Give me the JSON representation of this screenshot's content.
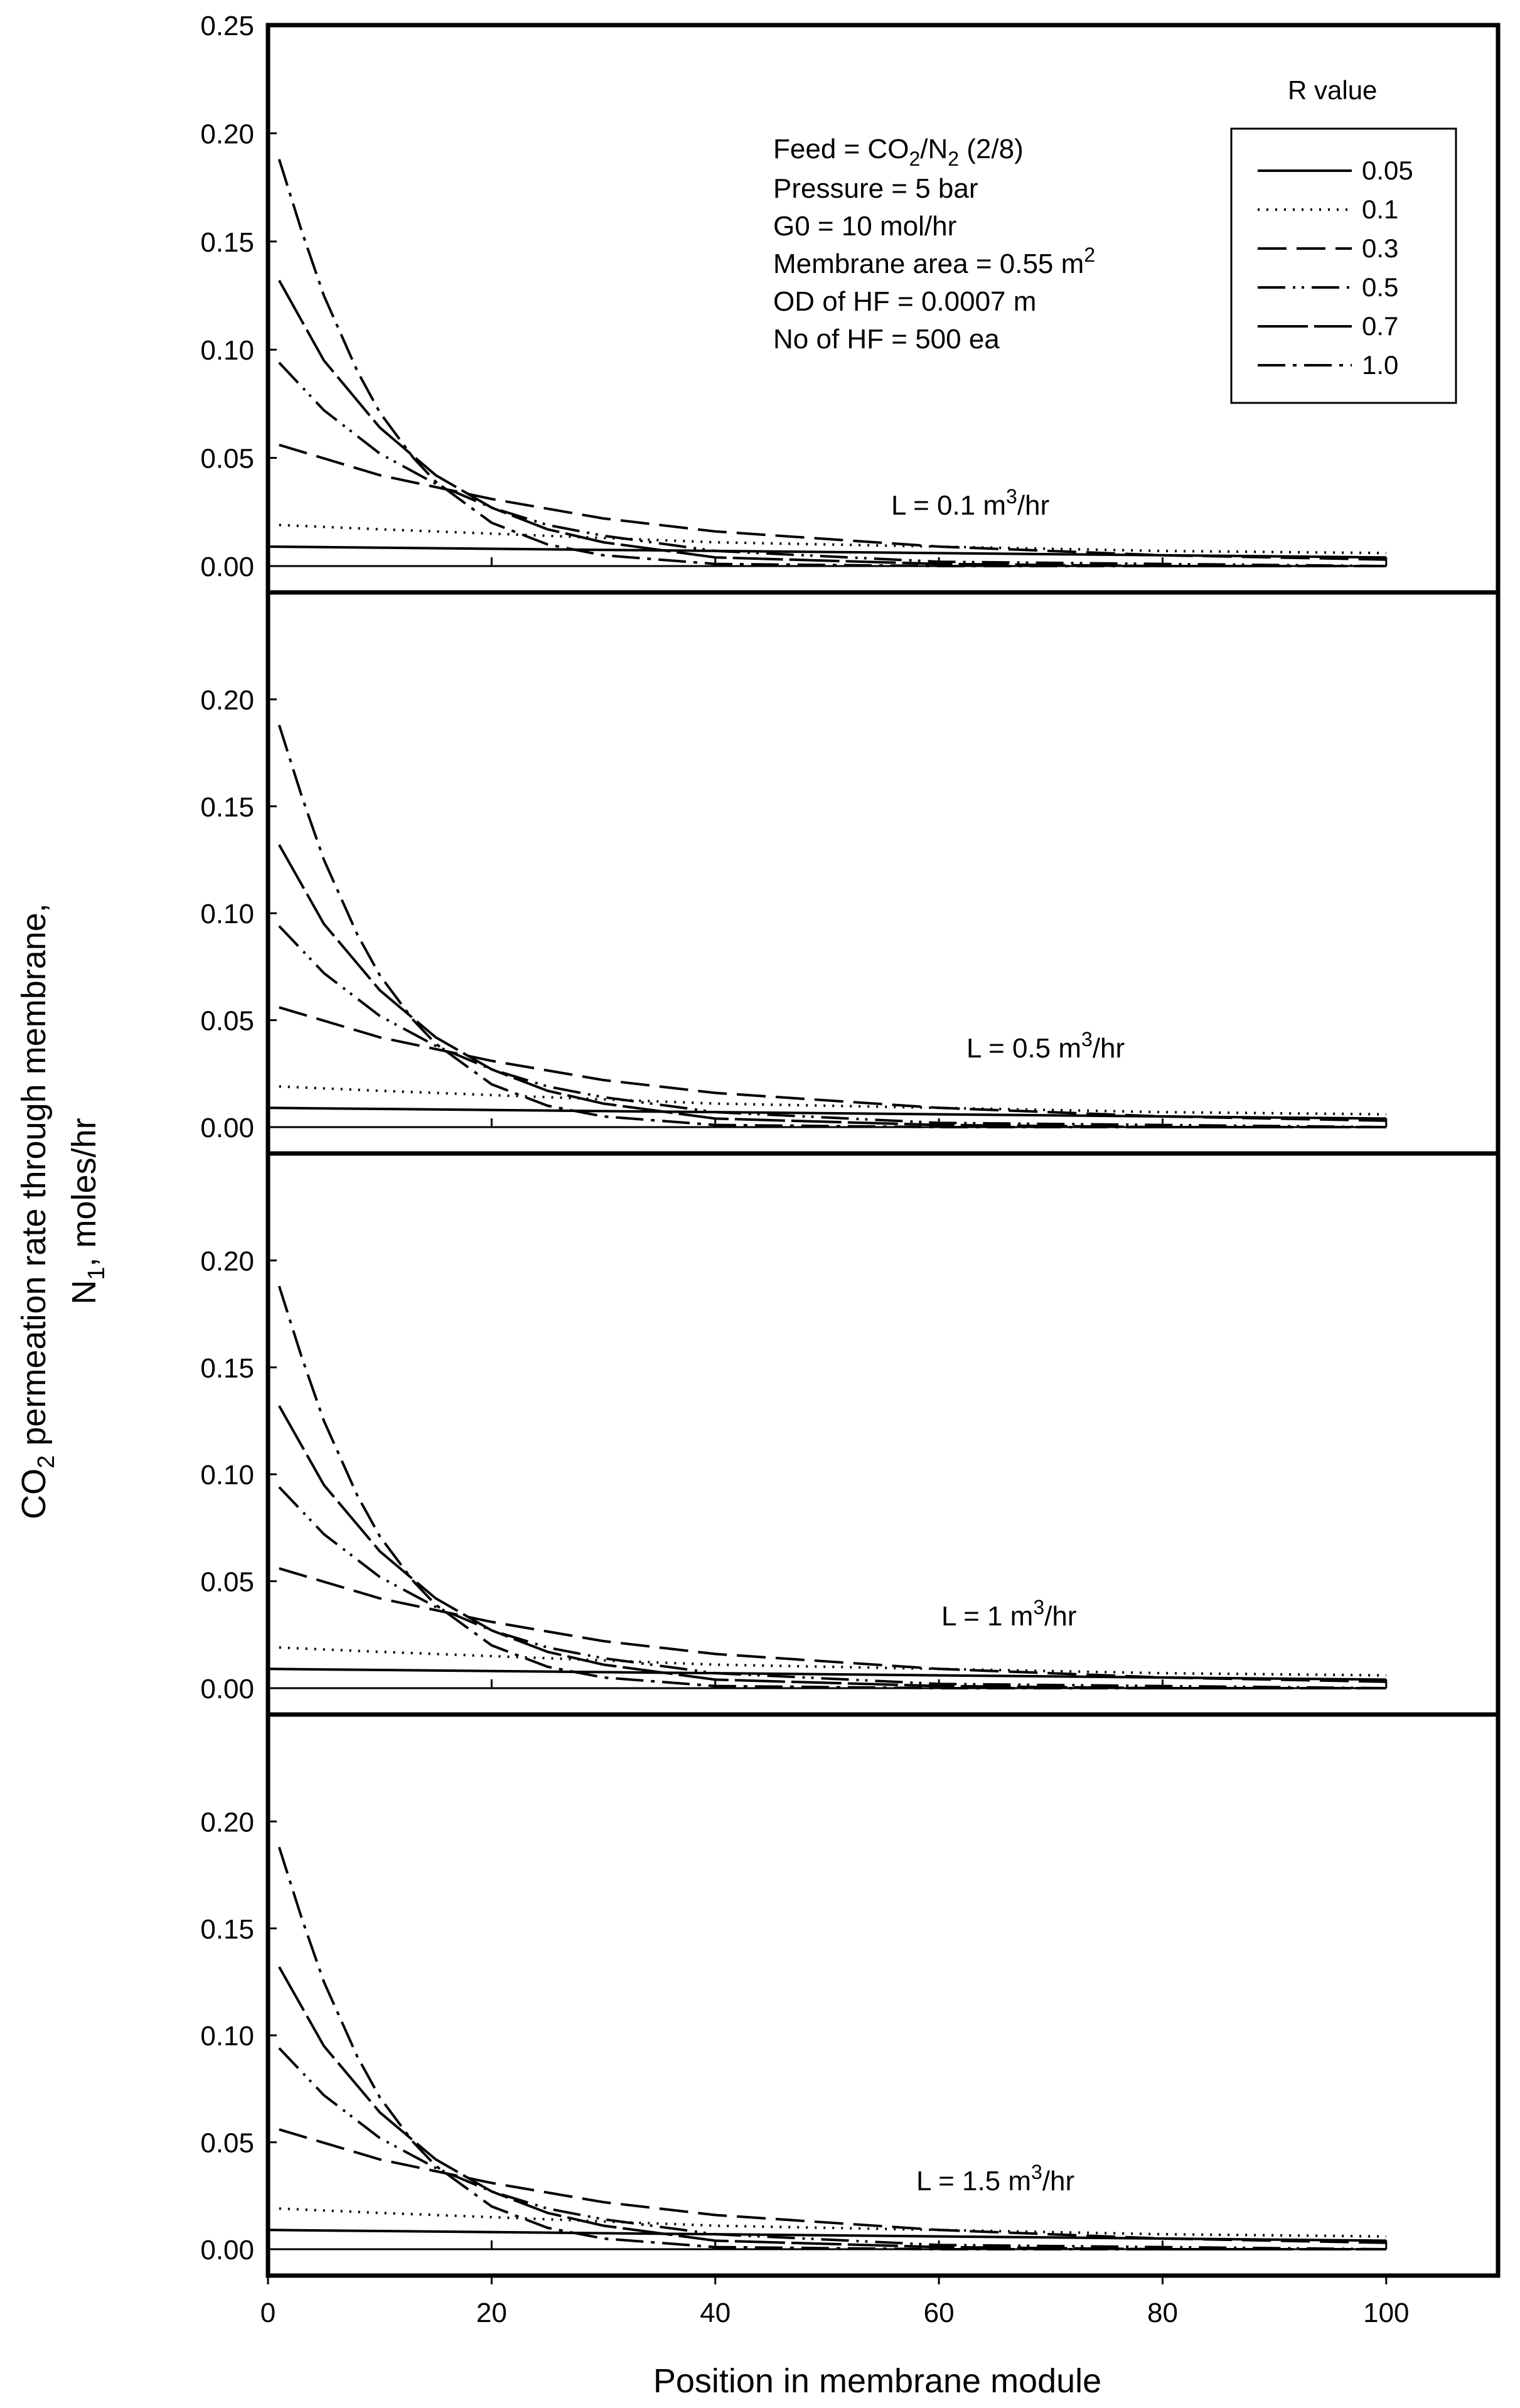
{
  "chart_data": {
    "type": "line",
    "panels": 4,
    "xlabel": "Position in membrane module",
    "ylabel_line1": "CO",
    "ylabel_line1_sub": "2",
    "ylabel_line1_rest": " permeation rate through membrane,",
    "ylabel_line2": "N",
    "ylabel_line2_sub": "1",
    "ylabel_line2_rest": ", moles/hr",
    "xlim": [
      0,
      110
    ],
    "ylim": [
      0,
      0.25
    ],
    "x_ticks": [
      0,
      20,
      40,
      60,
      80,
      100
    ],
    "x_tick_labels": [
      "0",
      "20",
      "40",
      "60",
      "80",
      "100"
    ],
    "y_ticks_top": [
      0.0,
      0.05,
      0.1,
      0.15,
      0.2,
      0.25
    ],
    "y_tick_labels_top": [
      "0.00",
      "0.05",
      "0.10",
      "0.15",
      "0.20",
      "0.25"
    ],
    "y_ticks_other": [
      0.0,
      0.05,
      0.1,
      0.15,
      0.2
    ],
    "y_tick_labels_other": [
      "0.00",
      "0.05",
      "0.10",
      "0.15",
      "0.20"
    ],
    "legend": {
      "title": "R value",
      "entries": [
        "0.05",
        "0.1",
        "0.3",
        "0.5",
        "0.7",
        "1.0"
      ],
      "location": "top-right"
    },
    "conditions": {
      "feed_prefix": "Feed = CO",
      "feed_sub1": "2",
      "feed_mid": "/N",
      "feed_sub2": "2",
      "feed_suffix": " (2/8)",
      "pressure": "Pressure = 5 bar",
      "g0": "G0 = 10 mol/hr",
      "area_text": "Membrane area = 0.55 m",
      "area_sup": "2",
      "od": "OD of HF =  0.0007 m",
      "n_hf": "No of HF = 500 ea"
    },
    "panel_labels": [
      {
        "prefix": "L = 0.1 m",
        "sup": "3",
        "suffix": "/hr"
      },
      {
        "prefix": "L = 0.5 m",
        "sup": "3",
        "suffix": "/hr"
      },
      {
        "prefix": "L = 1 m",
        "sup": "3",
        "suffix": "/hr"
      },
      {
        "prefix": "L = 1.5 m",
        "sup": "3",
        "suffix": "/hr"
      }
    ],
    "series": [
      {
        "name": "0.05",
        "dash": "solid",
        "x": [
          0,
          100
        ],
        "y": [
          0.009,
          0.004
        ]
      },
      {
        "name": "0.1",
        "dash": "dotted",
        "x": [
          1,
          10,
          20,
          30,
          40,
          60,
          80,
          100
        ],
        "y": [
          0.019,
          0.017,
          0.015,
          0.013,
          0.011,
          0.009,
          0.007,
          0.006
        ]
      },
      {
        "name": "0.3",
        "dash": "longdash",
        "x": [
          1,
          10,
          20,
          30,
          40,
          60,
          80,
          100
        ],
        "y": [
          0.056,
          0.042,
          0.031,
          0.022,
          0.016,
          0.009,
          0.005,
          0.003
        ]
      },
      {
        "name": "0.5",
        "dash": "dashdotdot",
        "x": [
          1,
          5,
          10,
          15,
          20,
          25,
          30,
          40,
          60,
          80,
          100
        ],
        "y": [
          0.094,
          0.072,
          0.052,
          0.038,
          0.027,
          0.019,
          0.014,
          0.007,
          0.002,
          0.001,
          0.0
        ]
      },
      {
        "name": "0.7",
        "dash": "longdashsolid",
        "x": [
          1,
          5,
          10,
          15,
          20,
          25,
          30,
          40,
          60,
          80,
          100
        ],
        "y": [
          0.132,
          0.095,
          0.064,
          0.042,
          0.027,
          0.017,
          0.011,
          0.004,
          0.001,
          0.0,
          0.0
        ]
      },
      {
        "name": "1.0",
        "dash": "dashdot",
        "x": [
          1,
          3,
          5,
          8,
          10,
          13,
          15,
          20,
          25,
          30,
          40,
          60,
          80,
          100
        ],
        "y": [
          0.188,
          0.155,
          0.125,
          0.09,
          0.071,
          0.05,
          0.039,
          0.02,
          0.01,
          0.005,
          0.001,
          0.0,
          0.0,
          0.0
        ]
      }
    ]
  }
}
